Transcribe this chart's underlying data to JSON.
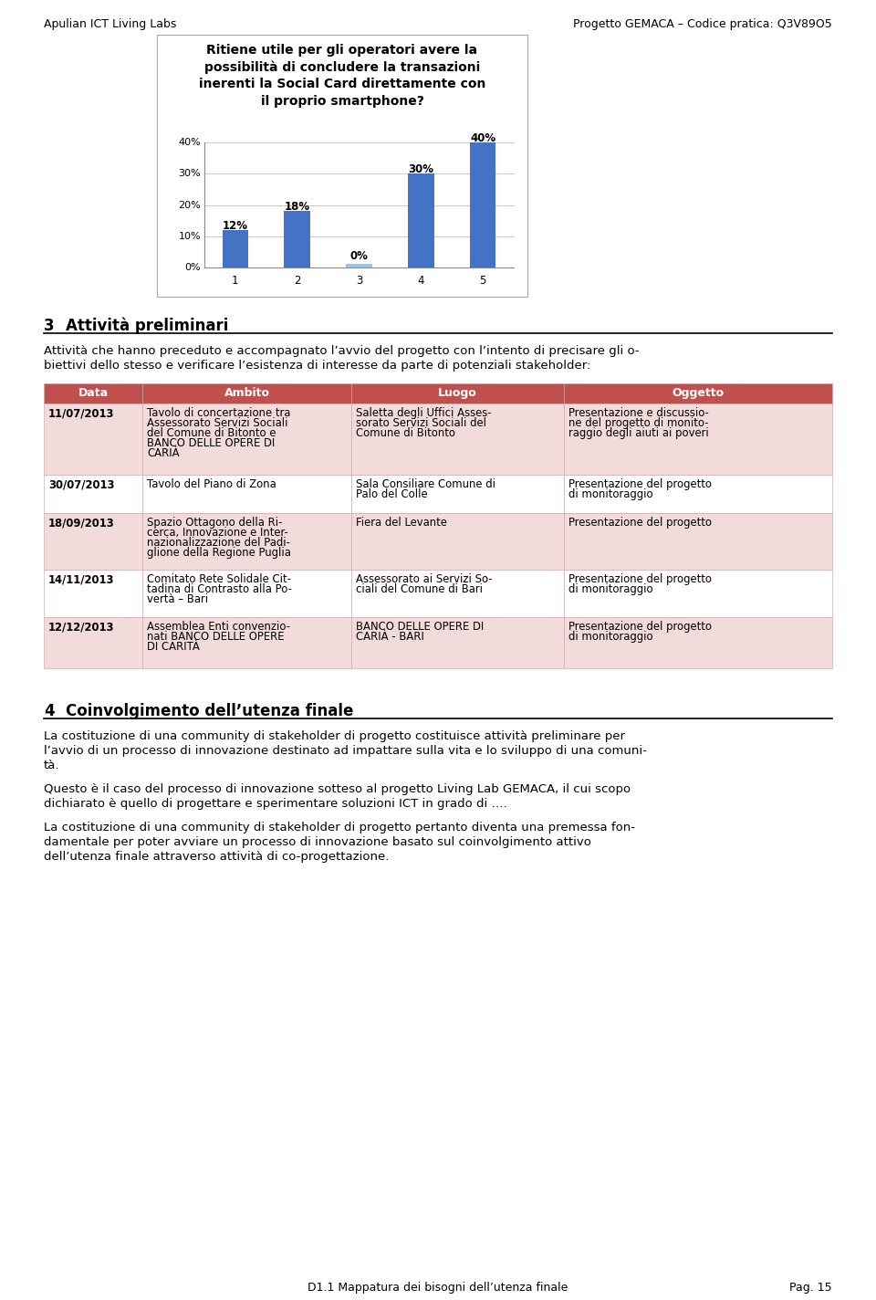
{
  "header_left": "Apulian ICT Living Labs",
  "header_right": "Progetto GEMACA – Codice pratica: Q3V89O5",
  "chart_title": "Ritiene utile per gli operatori avere la\npossibilità di concludere la transazioni\ninerenti la Social Card direttamente con\nil proprio smartphone?",
  "bar_values": [
    12,
    18,
    0,
    30,
    40
  ],
  "bar_labels": [
    "12%",
    "18%",
    "0%",
    "30%",
    "40%"
  ],
  "bar_x": [
    1,
    2,
    3,
    4,
    5
  ],
  "bar_color": "#4472C4",
  "bar_zero_color": "#9DC3E6",
  "ytick_vals": [
    0,
    10,
    20,
    30,
    40
  ],
  "ytick_labels": [
    "0%",
    "10%",
    "20%",
    "30%",
    "40%"
  ],
  "section3_heading_num": "3",
  "section3_heading": "Attività preliminari",
  "section3_intro": "Attività che hanno preceduto e accompagnato l’avvio del progetto con l’intento di precisare gli o-\nbiettivi dello stesso e verificare l’esistenza di interesse da parte di potenziali stakeholder:",
  "table_header": [
    "Data",
    "Ambito",
    "Luogo",
    "Oggetto"
  ],
  "table_header_bg": "#C0504D",
  "table_header_color": "#FFFFFF",
  "table_row_bg_odd": "#F2DCDB",
  "table_row_bg_even": "#FFFFFF",
  "table_border_color": "#C0504D",
  "table_rows": [
    {
      "data": "11/07/2013",
      "ambito": "Tavolo di concertazione tra\nAssessorato Servizi Sociali\ndel Comune di Bitonto e\nBANCO DELLE OPERE DI\nCARIÀ",
      "luogo": "Saletta degli Uffici Asses-\nsorato Servizi Sociali del\nComune di Bitonto",
      "oggetto": "Presentazione e discussio-\nne del progetto di monito-\nraggio degli aiuti ai poveri"
    },
    {
      "data": "30/07/2013",
      "ambito": "Tavolo del Piano di Zona",
      "luogo": "Sala Consiliare Comune di\nPalo del Colle",
      "oggetto": "Presentazione del progetto\ndi monitoraggio"
    },
    {
      "data": "18/09/2013",
      "ambito": "Spazio Ottagono della Ri-\ncerca, Innovazione e Inter-\nnazionalizzazione del Padi-\nglione della Regione Puglia",
      "luogo": "Fiera del Levante",
      "oggetto": "Presentazione del progetto"
    },
    {
      "data": "14/11/2013",
      "ambito": "Comitato Rete Solidale Cit-\ntadina di Contrasto alla Po-\nvertà – Bari",
      "luogo": "Assessorato ai Servizi So-\nciali del Comune di Bari",
      "oggetto": "Presentazione del progetto\ndi monitoraggio"
    },
    {
      "data": "12/12/2013",
      "ambito": "Assemblea Enti convenzio-\nnati BANCO DELLE OPERE\nDI CARITÀ",
      "luogo": "BANCO DELLE OPERE DI\nCARIÀ - BARI",
      "oggetto": "Presentazione del progetto\ndi monitoraggio"
    }
  ],
  "section4_heading_num": "4",
  "section4_heading": "Coinvolgimento dell’utenza finale",
  "section4_p1": "La costituzione di una community di stakeholder di progetto costituisce attività preliminare per\nl’avvio di un processo di innovazione destinato ad impattare sulla vita e lo sviluppo di una comuni-\ntà.",
  "section4_p2": "Questo è il caso del processo di innovazione sotteso al progetto Living Lab GEMACA, il cui scopo\ndichiarato è quello di progettare e sperimentare soluzioni ICT in grado di ….",
  "section4_p3": "La costituzione di una community di stakeholder di progetto pertanto diventa una premessa fon-\ndamentale per poter avviare un processo di innovazione basato sul coinvolgimento attivo\ndell’utenza finale attraverso attività di co-progettazione.",
  "footer_center": "D1.1 Mappatura dei bisogni dell’utenza finale",
  "footer_right": "Pag. 15",
  "page_bg": "#FFFFFF"
}
